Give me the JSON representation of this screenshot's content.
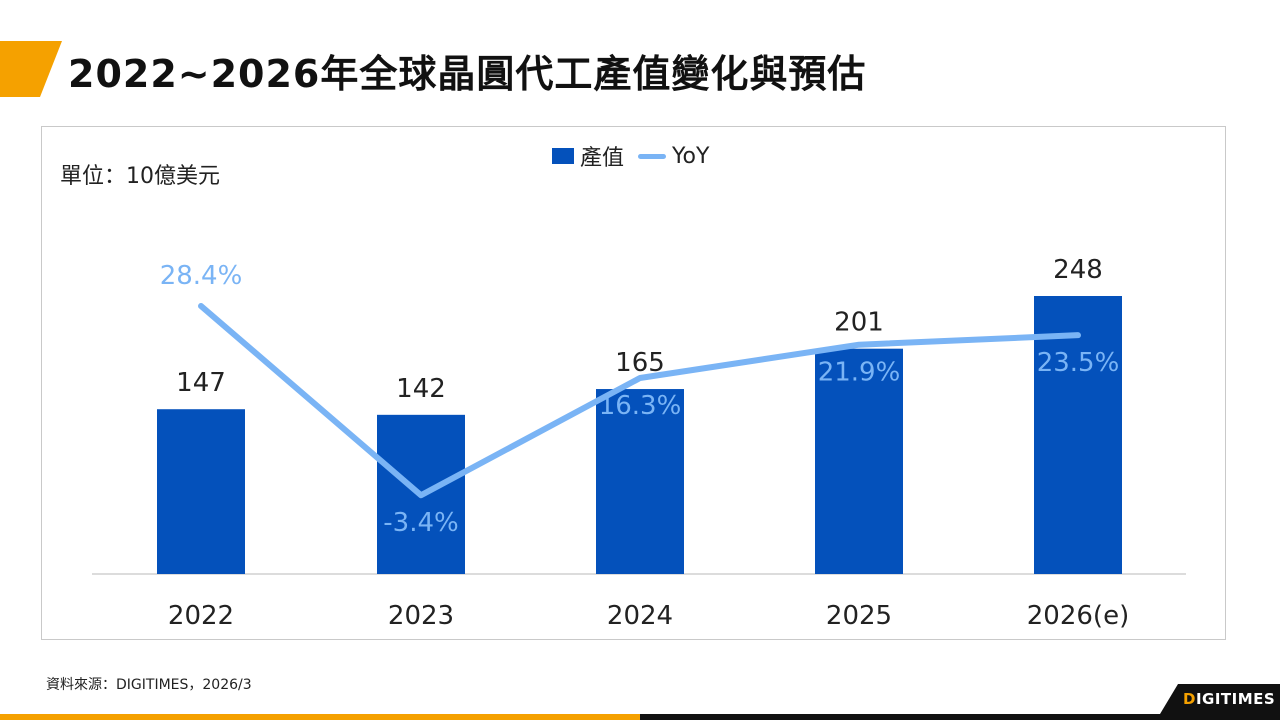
{
  "title": "2022~2026年全球晶圓代工產值變化與預估",
  "unit_label": "單位：10億美元",
  "source": "資料來源：DIGITIMES，2026/3",
  "logo": {
    "accent": "D",
    "rest": "IGITIMES"
  },
  "colors": {
    "bar": "#0451bb",
    "line": "#7ab4f5",
    "accent": "#f5a100"
  },
  "chart_data": {
    "type": "bar",
    "categories": [
      "2022",
      "2023",
      "2024",
      "2025",
      "2026(e)"
    ],
    "series": [
      {
        "name": "產值",
        "type": "bar",
        "values": [
          147,
          142,
          165,
          201,
          248
        ],
        "labels": [
          "147",
          "142",
          "165",
          "201",
          "248"
        ]
      },
      {
        "name": "YoY",
        "type": "line",
        "values": [
          28.4,
          -3.4,
          16.3,
          21.9,
          23.5
        ],
        "labels": [
          "28.4%",
          "-3.4%",
          "16.3%",
          "21.9%",
          "23.5%"
        ]
      }
    ],
    "legend": "top-center",
    "grid": false
  }
}
